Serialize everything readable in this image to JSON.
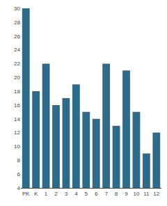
{
  "chart_data": {
    "type": "bar",
    "categories": [
      "PK",
      "K",
      "1",
      "2",
      "3",
      "4",
      "5",
      "6",
      "7",
      "8",
      "9",
      "10",
      "11",
      "12"
    ],
    "values": [
      30,
      18,
      22,
      16,
      17,
      19,
      15,
      14,
      22,
      13,
      21,
      15,
      9,
      12
    ],
    "color": "#2e6b8a",
    "ylim": [
      4,
      30
    ],
    "yticks": [
      4,
      6,
      8,
      10,
      12,
      14,
      16,
      18,
      20,
      22,
      24,
      26,
      28,
      30
    ],
    "grid": false
  }
}
